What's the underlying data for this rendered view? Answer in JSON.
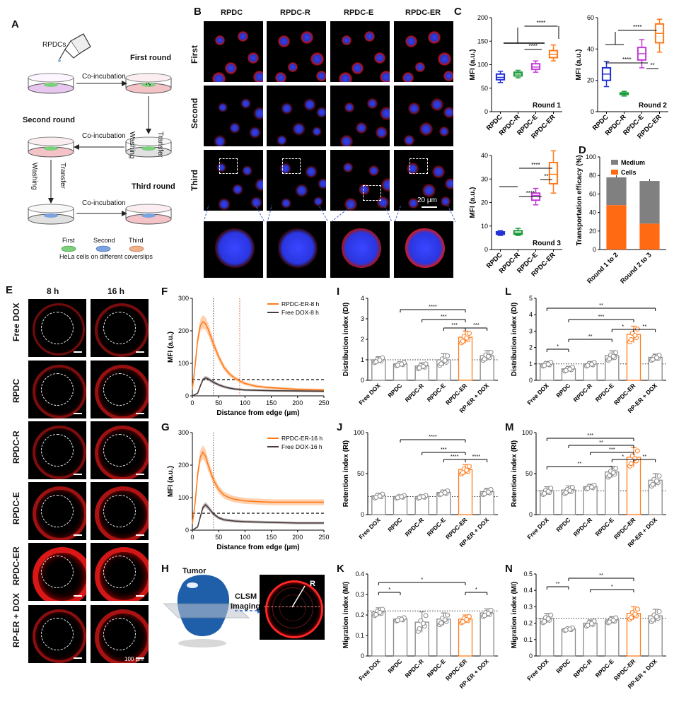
{
  "panel_labels": [
    "A",
    "B",
    "C",
    "D",
    "E",
    "F",
    "G",
    "H",
    "I",
    "J",
    "K",
    "L",
    "M",
    "N"
  ],
  "panel_a": {
    "rpdcs": "RPDCs",
    "first_round": "First round",
    "second_round": "Second round",
    "third_round": "Third round",
    "co_incubation": "Co-incubation",
    "washing": "Washing",
    "transfer": "Transfer",
    "legend_first": "First",
    "legend_second": "Second",
    "legend_third": "Third",
    "legend_caption": "HeLa cells on different coverslips"
  },
  "panel_b": {
    "columns": [
      "RPDC",
      "RPDC-R",
      "RPDC-E",
      "RPDC-ER"
    ],
    "rows": [
      "First",
      "Second",
      "Third"
    ],
    "scale": "20 μm"
  },
  "panel_d": {
    "ylabel": "Transportation efficacy (%)",
    "legend": [
      "Medium",
      "Cells"
    ],
    "colors": {
      "medium": "#808080",
      "cells": "#ff6a13"
    }
  },
  "panel_e": {
    "columns": [
      "8 h",
      "16 h"
    ],
    "rows": [
      "Free DOX",
      "RPDC",
      "RPDC-R",
      "RPDC-E",
      "RPDC-ER",
      "RP-ER + DOX"
    ],
    "scale": "100 μm"
  },
  "panel_h": {
    "tumor": "Tumor",
    "clsm": "CLSM",
    "imaging": "Imaging",
    "r": "R"
  },
  "chart_data": [
    {
      "panel": "C1",
      "type": "box",
      "categories": [
        "RPDC",
        "RPDC-R",
        "RPDC-E",
        "RPDC-ER"
      ],
      "ylabel": "MFI (a.u.)",
      "ylim": [
        0,
        200
      ],
      "yticks": [
        0,
        50,
        100,
        150,
        200
      ],
      "boxes": [
        {
          "min": 62,
          "q1": 68,
          "med": 73,
          "q3": 80,
          "max": 86
        },
        {
          "min": 72,
          "q1": 76,
          "med": 80,
          "q3": 84,
          "max": 88
        },
        {
          "min": 84,
          "q1": 90,
          "med": 95,
          "q3": 102,
          "max": 108
        },
        {
          "min": 108,
          "q1": 115,
          "med": 122,
          "q3": 130,
          "max": 142
        }
      ],
      "colors": [
        "#2230d6",
        "#1b9a3a",
        "#c23ad6",
        "#ff7a1a"
      ],
      "annotation": "Round 1",
      "sig": [
        "****",
        "****"
      ]
    },
    {
      "panel": "C2",
      "type": "box",
      "categories": [
        "RPDC",
        "RPDC-R",
        "RPDC-E",
        "RPDC-ER"
      ],
      "ylabel": "MFI (a.u.)",
      "ylim": [
        0,
        60
      ],
      "yticks": [
        0,
        20,
        40,
        60
      ],
      "boxes": [
        {
          "min": 16,
          "q1": 20,
          "med": 24,
          "q3": 28,
          "max": 32
        },
        {
          "min": 10,
          "q1": 11,
          "med": 11.5,
          "q3": 12,
          "max": 13
        },
        {
          "min": 28,
          "q1": 33,
          "med": 37,
          "q3": 41,
          "max": 46
        },
        {
          "min": 38,
          "q1": 44,
          "med": 50,
          "q3": 56,
          "max": 59
        }
      ],
      "colors": [
        "#2230d6",
        "#1b9a3a",
        "#c23ad6",
        "#ff7a1a"
      ],
      "annotation": "Round 2",
      "sig": [
        "****",
        "****",
        "**"
      ]
    },
    {
      "panel": "C3",
      "type": "box",
      "categories": [
        "RPDC",
        "RPDC-R",
        "RPDC-E",
        "RPDC-ER"
      ],
      "ylabel": "MFI (a.u.)",
      "ylim": [
        0,
        40
      ],
      "yticks": [
        0,
        10,
        20,
        30,
        40
      ],
      "boxes": [
        {
          "min": 6,
          "q1": 6.5,
          "med": 7,
          "q3": 7.5,
          "max": 8
        },
        {
          "min": 6,
          "q1": 6.5,
          "med": 7,
          "q3": 8,
          "max": 9
        },
        {
          "min": 19,
          "q1": 21,
          "med": 23,
          "q3": 24,
          "max": 26
        },
        {
          "min": 24,
          "q1": 28,
          "med": 32,
          "q3": 37,
          "max": 42
        }
      ],
      "colors": [
        "#2230d6",
        "#1b9a3a",
        "#c23ad6",
        "#ff7a1a"
      ],
      "annotation": "Round 3",
      "sig": [
        "****",
        "****",
        "**"
      ]
    },
    {
      "panel": "D",
      "type": "bar",
      "categories": [
        "Round 1 to 2",
        "Round 2 to 3"
      ],
      "ylim": [
        0,
        100
      ],
      "yticks": [
        0,
        20,
        40,
        60,
        80,
        100
      ],
      "series": [
        {
          "name": "Cells",
          "values": [
            48,
            28
          ]
        },
        {
          "name": "Medium",
          "values": [
            30,
            46
          ]
        }
      ]
    },
    {
      "panel": "F",
      "type": "line",
      "xlabel": "Distance from edge (μm)",
      "ylabel": "MFI (a.u.)",
      "xlim": [
        0,
        250
      ],
      "ylim": [
        0,
        300
      ],
      "xticks": [
        0,
        50,
        100,
        150,
        200,
        250
      ],
      "yticks": [
        0,
        100,
        200,
        300
      ],
      "series": [
        {
          "name": "RPDC-ER-8 h",
          "color": "#ff7a1a",
          "x": [
            0,
            5,
            10,
            15,
            20,
            25,
            30,
            40,
            50,
            60,
            70,
            80,
            90,
            100,
            120,
            140,
            160,
            180,
            200,
            250
          ],
          "y": [
            20,
            90,
            170,
            215,
            228,
            222,
            205,
            160,
            120,
            88,
            68,
            55,
            46,
            38,
            30,
            26,
            24,
            22,
            20,
            18
          ]
        },
        {
          "name": "Free DOX-8 h",
          "color": "#4a3a3a",
          "x": [
            0,
            10,
            15,
            20,
            25,
            30,
            40,
            50,
            60,
            70,
            80,
            100,
            150,
            200,
            250
          ],
          "y": [
            0,
            8,
            30,
            50,
            55,
            52,
            42,
            34,
            28,
            24,
            21,
            18,
            16,
            15,
            14
          ]
        }
      ],
      "ref_y": 50
    },
    {
      "panel": "G",
      "type": "line",
      "xlabel": "Distance from edge (μm)",
      "ylabel": "MFI (a.u.)",
      "xlim": [
        0,
        250
      ],
      "ylim": [
        0,
        300
      ],
      "xticks": [
        0,
        50,
        100,
        150,
        200,
        250
      ],
      "yticks": [
        0,
        100,
        200,
        300
      ],
      "series": [
        {
          "name": "RPDC-ER-16 h",
          "color": "#ff7a1a",
          "x": [
            0,
            5,
            10,
            15,
            20,
            25,
            30,
            40,
            50,
            60,
            70,
            80,
            100,
            120,
            150,
            180,
            200,
            220,
            250
          ],
          "y": [
            20,
            80,
            170,
            225,
            240,
            228,
            200,
            155,
            125,
            108,
            100,
            95,
            90,
            88,
            86,
            86,
            86,
            86,
            86
          ]
        },
        {
          "name": "Free DOX-16 h",
          "color": "#4a3a3a",
          "x": [
            0,
            10,
            15,
            20,
            25,
            30,
            40,
            50,
            60,
            80,
            100,
            150,
            200,
            250
          ],
          "y": [
            0,
            10,
            40,
            70,
            78,
            70,
            50,
            38,
            32,
            28,
            26,
            24,
            22,
            22
          ]
        }
      ],
      "ref_y": 52
    },
    {
      "panel": "I",
      "type": "bar",
      "categories": [
        "Free DOX",
        "RPDC",
        "RPDC-R",
        "RPDC-E",
        "RPDC-ER",
        "RP-ER + DOX"
      ],
      "ylabel": "Distribution index (DI)",
      "ylim": [
        0,
        4
      ],
      "yticks": [
        0,
        1,
        2,
        3,
        4
      ],
      "values": [
        1.0,
        0.8,
        0.7,
        1.0,
        2.1,
        1.2
      ],
      "errors": [
        0.15,
        0.1,
        0.15,
        0.3,
        0.3,
        0.25
      ],
      "ref_y": 1,
      "highlight": 4,
      "sig": [
        "****",
        "***",
        "***",
        "***"
      ]
    },
    {
      "panel": "J",
      "type": "bar",
      "categories": [
        "Free DOX",
        "RPDC",
        "RPDC-R",
        "RPDC-E",
        "RPDC-ER",
        "RP-ER + DOX"
      ],
      "ylabel": "Retention index (RI)",
      "ylim": [
        0,
        100
      ],
      "yticks": [
        0,
        50,
        100
      ],
      "values": [
        23,
        22,
        22,
        27,
        55,
        28
      ],
      "errors": [
        3,
        2,
        2,
        3,
        6,
        4
      ],
      "ref_y": 22,
      "highlight": 4,
      "sig": [
        "****",
        "***",
        "****",
        "****"
      ]
    },
    {
      "panel": "K",
      "type": "bar",
      "categories": [
        "Free DOX",
        "RPDC",
        "RPDC-R",
        "RPDC-E",
        "RPDC-ER",
        "RP-ER + DOX"
      ],
      "ylabel": "Migration index (MI)",
      "ylim": [
        0,
        0.4
      ],
      "yticks": [
        0,
        0.1,
        0.2,
        0.3,
        0.4
      ],
      "values": [
        0.215,
        0.18,
        0.165,
        0.18,
        0.18,
        0.21
      ],
      "errors": [
        0.02,
        0.01,
        0.05,
        0.03,
        0.02,
        0.02
      ],
      "ref_y": 0.22,
      "highlight": 4,
      "sig": [
        "*",
        "*",
        "*"
      ]
    },
    {
      "panel": "L",
      "type": "bar",
      "categories": [
        "Free DOX",
        "RPDC",
        "RPDC-R",
        "RPDC-E",
        "RPDC-ER",
        "RP-ER + DOX"
      ],
      "ylabel": "Distribution index (DI)",
      "ylim": [
        0,
        5
      ],
      "yticks": [
        0,
        1,
        2,
        3,
        4,
        5
      ],
      "values": [
        1.0,
        0.7,
        1.0,
        1.5,
        2.8,
        1.4
      ],
      "errors": [
        0.15,
        0.15,
        0.15,
        0.3,
        0.5,
        0.2
      ],
      "ref_y": 1,
      "highlight": 4,
      "sig": [
        "**",
        "***",
        "*",
        "**",
        "*",
        "**"
      ]
    },
    {
      "panel": "M",
      "type": "bar",
      "categories": [
        "Free DOX",
        "RPDC",
        "RPDC-R",
        "RPDC-E",
        "RPDC-ER",
        "RP-ER + DOX"
      ],
      "ylabel": "Retention index (RI)",
      "ylim": [
        0,
        100
      ],
      "yticks": [
        0,
        50,
        100
      ],
      "values": [
        29,
        30,
        34,
        52,
        70,
        42
      ],
      "errors": [
        5,
        5,
        3,
        7,
        12,
        8
      ],
      "ref_y": 29,
      "highlight": 4,
      "sig": [
        "***",
        "**",
        "***",
        "*",
        "**",
        "**"
      ]
    },
    {
      "panel": "N",
      "type": "bar",
      "categories": [
        "Free DOX",
        "RPDC",
        "RPDC-R",
        "RPDC-E",
        "RPDC-ER",
        "RP-ER + DOX"
      ],
      "ylabel": "Migration index (MI)",
      "ylim": [
        0,
        0.5
      ],
      "yticks": [
        0,
        0.1,
        0.2,
        0.3,
        0.4,
        0.5
      ],
      "values": [
        0.23,
        0.165,
        0.2,
        0.22,
        0.26,
        0.245
      ],
      "errors": [
        0.03,
        0.01,
        0.02,
        0.02,
        0.04,
        0.04
      ],
      "ref_y": 0.23,
      "highlight": 4,
      "sig": [
        "**",
        "**",
        "*"
      ]
    }
  ]
}
